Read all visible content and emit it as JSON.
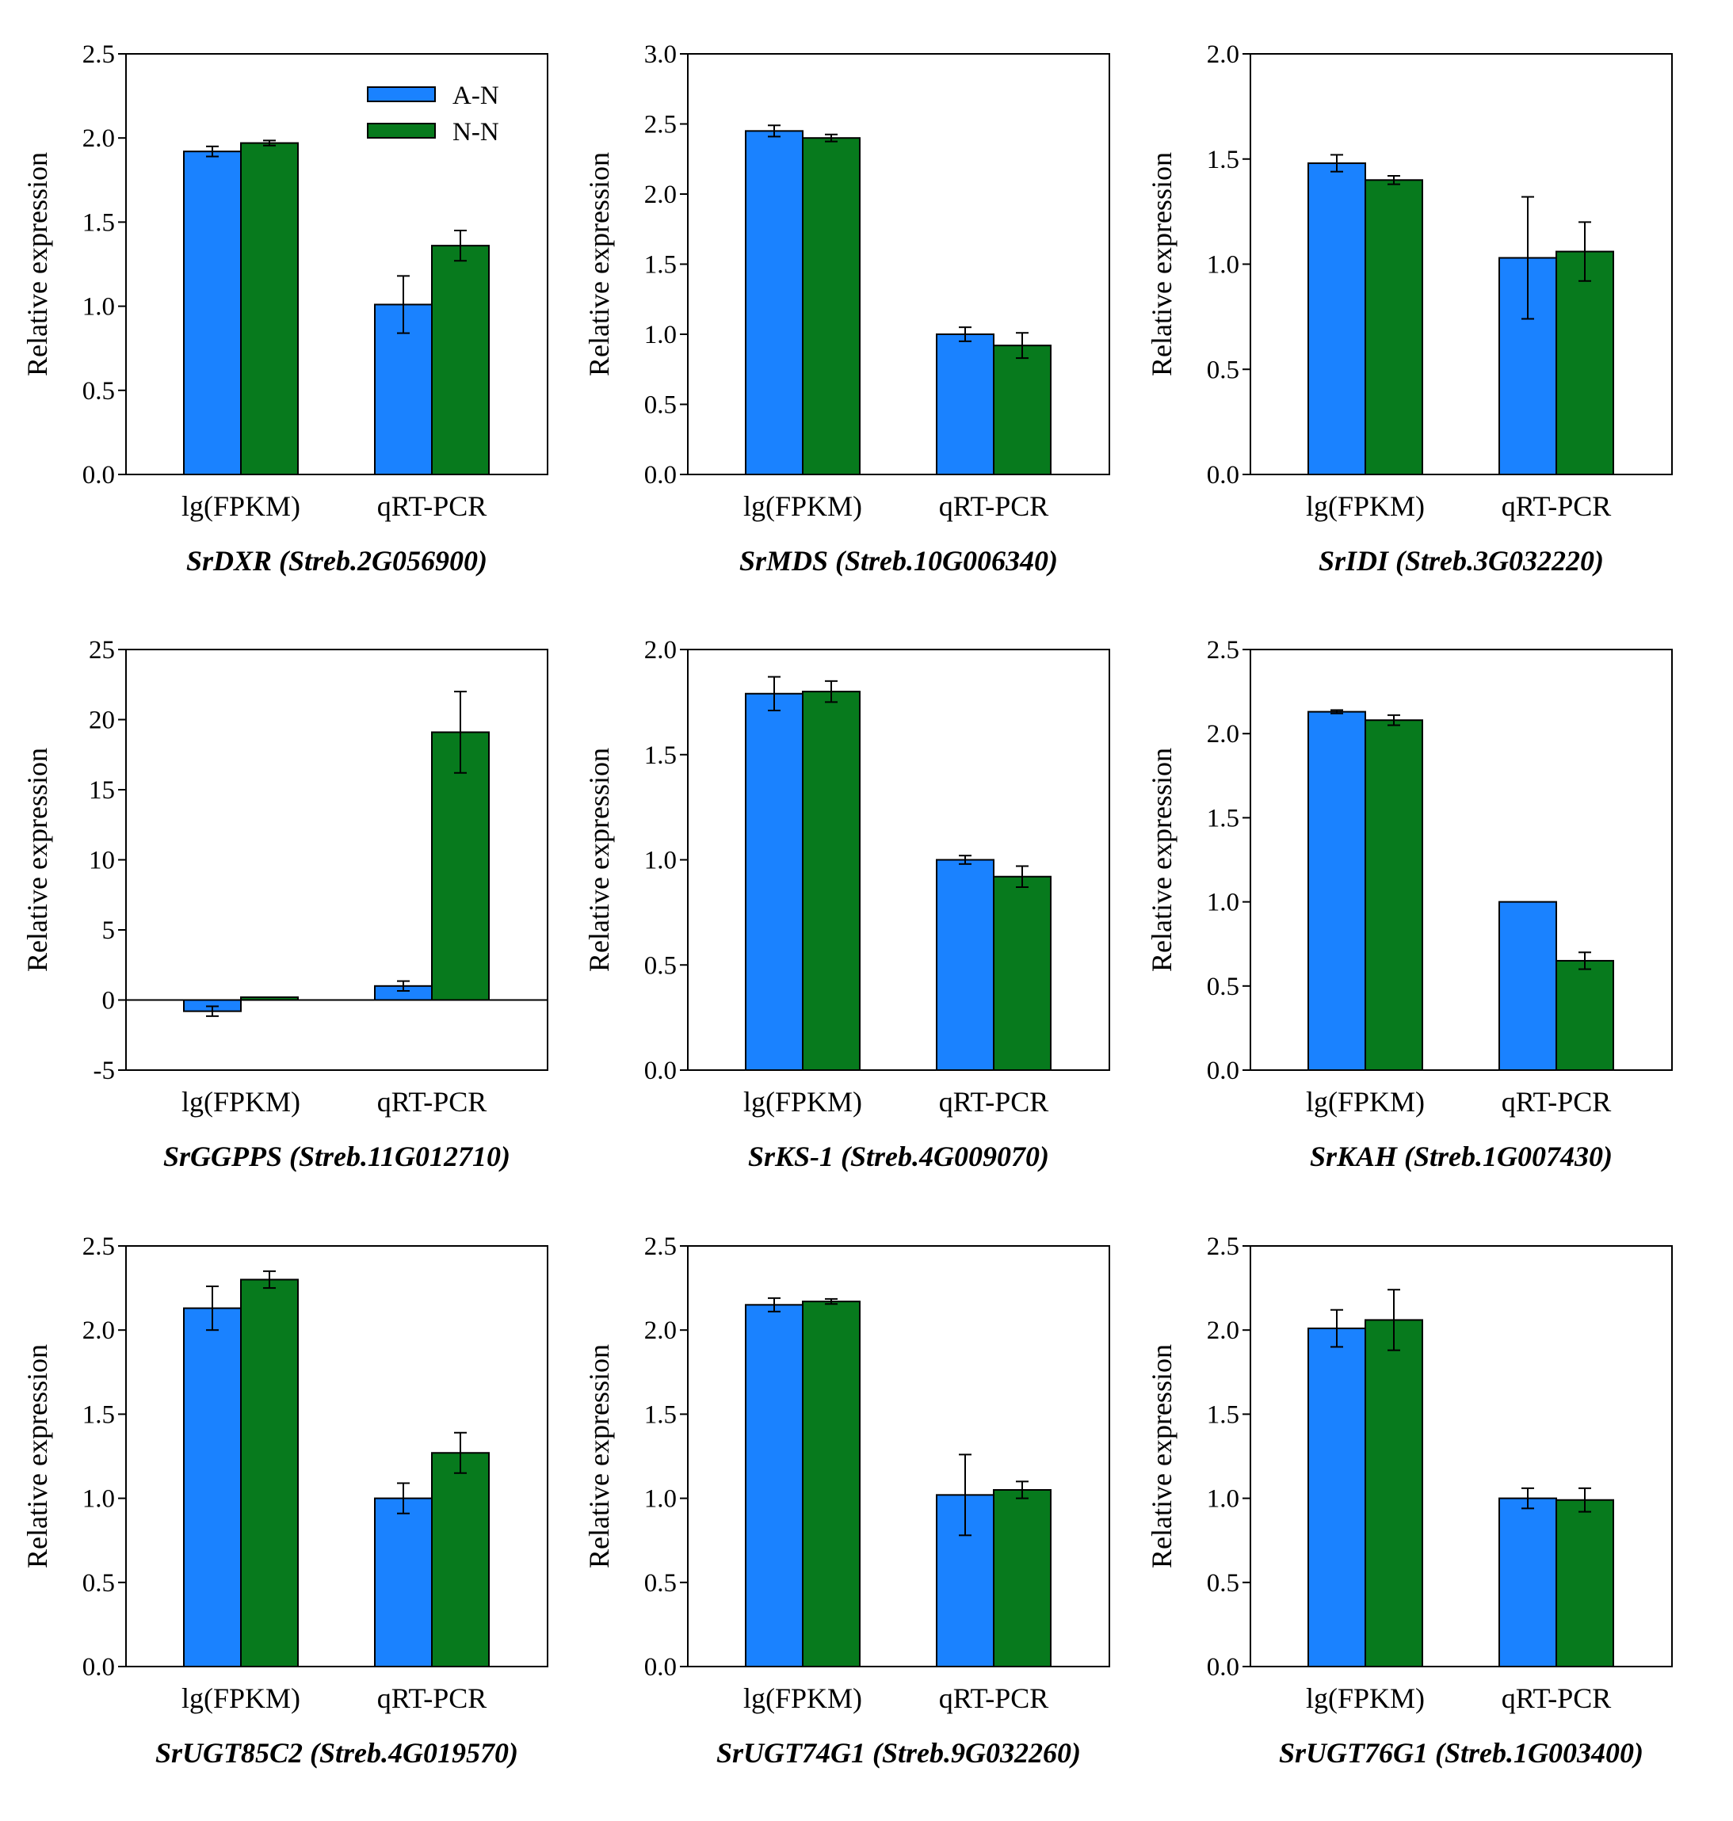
{
  "chart_data": [
    {
      "type": "bar",
      "title": "SrDXR (Streb.2G056900)",
      "xlabel": "",
      "ylabel": "Relative expression",
      "categories": [
        "lg(FPKM)",
        "qRT-PCR"
      ],
      "ylim": [
        0,
        2.5
      ],
      "yticks": [
        "0.0",
        "0.5",
        "1.0",
        "1.5",
        "2.0",
        "2.5"
      ],
      "series": [
        {
          "name": "A-N",
          "values": [
            1.92,
            1.01
          ],
          "errors": [
            0.03,
            0.17
          ]
        },
        {
          "name": "N-N",
          "values": [
            1.97,
            1.36
          ],
          "errors": [
            0.015,
            0.09
          ]
        }
      ],
      "legend": {
        "position": "top-right",
        "entries": [
          "A-N",
          "N-N"
        ]
      }
    },
    {
      "type": "bar",
      "title": "SrMDS (Streb.10G006340)",
      "xlabel": "",
      "ylabel": "Relative expression",
      "categories": [
        "lg(FPKM)",
        "qRT-PCR"
      ],
      "ylim": [
        0,
        3.0
      ],
      "yticks": [
        "0.0",
        "0.5",
        "1.0",
        "1.5",
        "2.0",
        "2.5",
        "3.0"
      ],
      "series": [
        {
          "name": "A-N",
          "values": [
            2.45,
            1.0
          ],
          "errors": [
            0.04,
            0.05
          ]
        },
        {
          "name": "N-N",
          "values": [
            2.4,
            0.92
          ],
          "errors": [
            0.025,
            0.09
          ]
        }
      ]
    },
    {
      "type": "bar",
      "title": "SrIDI (Streb.3G032220)",
      "xlabel": "",
      "ylabel": "Relative expression",
      "categories": [
        "lg(FPKM)",
        "qRT-PCR"
      ],
      "ylim": [
        0,
        2.0
      ],
      "yticks": [
        "0.0",
        "0.5",
        "1.0",
        "1.5",
        "2.0"
      ],
      "series": [
        {
          "name": "A-N",
          "values": [
            1.48,
            1.03
          ],
          "errors": [
            0.04,
            0.29
          ]
        },
        {
          "name": "N-N",
          "values": [
            1.4,
            1.06
          ],
          "errors": [
            0.02,
            0.14
          ]
        }
      ]
    },
    {
      "type": "bar",
      "title": "SrGGPPS (Streb.11G012710)",
      "xlabel": "",
      "ylabel": "Relative expression",
      "categories": [
        "lg(FPKM)",
        "qRT-PCR"
      ],
      "ylim": [
        -5,
        25
      ],
      "yticks": [
        "-5",
        "0",
        "5",
        "10",
        "15",
        "20",
        "25"
      ],
      "zero_line": true,
      "series": [
        {
          "name": "A-N",
          "values": [
            -0.8,
            1.0
          ],
          "errors": [
            0.35,
            0.35
          ]
        },
        {
          "name": "N-N",
          "values": [
            0.2,
            19.1
          ],
          "errors": [
            0.0,
            2.9
          ]
        }
      ]
    },
    {
      "type": "bar",
      "title": "SrKS-1 (Streb.4G009070)",
      "xlabel": "",
      "ylabel": "Relative expression",
      "categories": [
        "lg(FPKM)",
        "qRT-PCR"
      ],
      "ylim": [
        0,
        2.0
      ],
      "yticks": [
        "0.0",
        "0.5",
        "1.0",
        "1.5",
        "2.0"
      ],
      "series": [
        {
          "name": "A-N",
          "values": [
            1.79,
            1.0
          ],
          "errors": [
            0.08,
            0.02
          ]
        },
        {
          "name": "N-N",
          "values": [
            1.8,
            0.92
          ],
          "errors": [
            0.05,
            0.05
          ]
        }
      ]
    },
    {
      "type": "bar",
      "title": "SrKAH (Streb.1G007430)",
      "xlabel": "",
      "ylabel": "Relative expression",
      "categories": [
        "lg(FPKM)",
        "qRT-PCR"
      ],
      "ylim": [
        0,
        2.5
      ],
      "yticks": [
        "0.0",
        "0.5",
        "1.0",
        "1.5",
        "2.0",
        "2.5"
      ],
      "series": [
        {
          "name": "A-N",
          "values": [
            2.13,
            1.0
          ],
          "errors": [
            0.01,
            0.0
          ]
        },
        {
          "name": "N-N",
          "values": [
            2.08,
            0.65
          ],
          "errors": [
            0.03,
            0.05
          ]
        }
      ]
    },
    {
      "type": "bar",
      "title": "SrUGT85C2 (Streb.4G019570)",
      "xlabel": "",
      "ylabel": "Relative expression",
      "categories": [
        "lg(FPKM)",
        "qRT-PCR"
      ],
      "ylim": [
        0,
        2.5
      ],
      "yticks": [
        "0.0",
        "0.5",
        "1.0",
        "1.5",
        "2.0",
        "2.5"
      ],
      "series": [
        {
          "name": "A-N",
          "values": [
            2.13,
            1.0
          ],
          "errors": [
            0.13,
            0.09
          ]
        },
        {
          "name": "N-N",
          "values": [
            2.3,
            1.27
          ],
          "errors": [
            0.05,
            0.12
          ]
        }
      ]
    },
    {
      "type": "bar",
      "title": "SrUGT74G1 (Streb.9G032260)",
      "xlabel": "",
      "ylabel": "Relative expression",
      "categories": [
        "lg(FPKM)",
        "qRT-PCR"
      ],
      "ylim": [
        0,
        2.5
      ],
      "yticks": [
        "0.0",
        "0.5",
        "1.0",
        "1.5",
        "2.0",
        "2.5"
      ],
      "series": [
        {
          "name": "A-N",
          "values": [
            2.15,
            1.02
          ],
          "errors": [
            0.04,
            0.24
          ]
        },
        {
          "name": "N-N",
          "values": [
            2.17,
            1.05
          ],
          "errors": [
            0.015,
            0.05
          ]
        }
      ]
    },
    {
      "type": "bar",
      "title": "SrUGT76G1 (Streb.1G003400)",
      "xlabel": "",
      "ylabel": "Relative expression",
      "categories": [
        "lg(FPKM)",
        "qRT-PCR"
      ],
      "ylim": [
        0,
        2.5
      ],
      "yticks": [
        "0.0",
        "0.5",
        "1.0",
        "1.5",
        "2.0",
        "2.5"
      ],
      "series": [
        {
          "name": "A-N",
          "values": [
            2.01,
            1.0
          ],
          "errors": [
            0.11,
            0.06
          ]
        },
        {
          "name": "N-N",
          "values": [
            2.06,
            0.99
          ],
          "errors": [
            0.18,
            0.07
          ]
        }
      ]
    }
  ],
  "colors": {
    "A-N": "#1a82ff",
    "N-N": "#077a1d",
    "axis": "#000000"
  }
}
